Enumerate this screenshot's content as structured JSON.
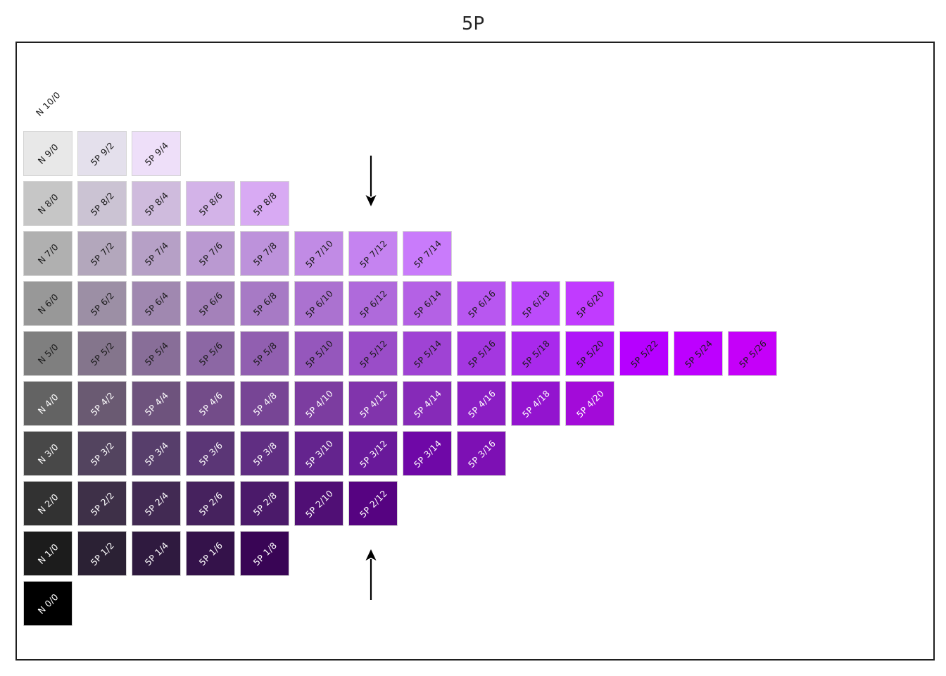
{
  "title": "5P",
  "chart_data": {
    "type": "heatmap",
    "title": "5P",
    "x_meaning": "Munsell chroma (0 = neutral N, then /2 steps up to /26)",
    "y_meaning": "Munsell value (0 dark bottom to 10 light top)",
    "legend": "none",
    "grid": "off",
    "rows": [
      {
        "value": 10,
        "cells": [
          {
            "label": "N 10/0",
            "chroma": 0,
            "color": "#ffffff",
            "text_color": "#1a1a1a",
            "borderless": true
          }
        ]
      },
      {
        "value": 9,
        "cells": [
          {
            "label": "N 9/0",
            "chroma": 0,
            "color": "#e8e8e8",
            "text_color": "#1a1a1a"
          },
          {
            "label": "5P 9/2",
            "chroma": 2,
            "color": "#e4e0ec",
            "text_color": "#1a1a1a"
          },
          {
            "label": "5P 9/4",
            "chroma": 4,
            "color": "#eedff9",
            "text_color": "#1a1a1a"
          }
        ]
      },
      {
        "value": 8,
        "cells": [
          {
            "label": "N 8/0",
            "chroma": 0,
            "color": "#c6c6c6",
            "text_color": "#1a1a1a"
          },
          {
            "label": "5P 8/2",
            "chroma": 2,
            "color": "#cbc3d3",
            "text_color": "#1a1a1a"
          },
          {
            "label": "5P 8/4",
            "chroma": 4,
            "color": "#cfbbdd",
            "text_color": "#1a1a1a"
          },
          {
            "label": "5P 8/6",
            "chroma": 6,
            "color": "#d3b3e8",
            "text_color": "#1a1a1a"
          },
          {
            "label": "5P 8/8",
            "chroma": 8,
            "color": "#d8aaf3",
            "text_color": "#1a1a1a"
          }
        ]
      },
      {
        "value": 7,
        "cells": [
          {
            "label": "N 7/0",
            "chroma": 0,
            "color": "#b0b0b0",
            "text_color": "#1a1a1a"
          },
          {
            "label": "5P 7/2",
            "chroma": 2,
            "color": "#b3a7bc",
            "text_color": "#1a1a1a"
          },
          {
            "label": "5P 7/4",
            "chroma": 4,
            "color": "#b6a0c6",
            "text_color": "#1a1a1a"
          },
          {
            "label": "5P 7/6",
            "chroma": 6,
            "color": "#ba99d1",
            "text_color": "#1a1a1a"
          },
          {
            "label": "5P 7/8",
            "chroma": 8,
            "color": "#bd92db",
            "text_color": "#1a1a1a"
          },
          {
            "label": "5P 7/10",
            "chroma": 10,
            "color": "#c18be5",
            "text_color": "#1a1a1a"
          },
          {
            "label": "5P 7/12",
            "chroma": 12,
            "color": "#c583f0",
            "text_color": "#1a1a1a"
          },
          {
            "label": "5P 7/14",
            "chroma": 14,
            "color": "#c97bfb",
            "text_color": "#1a1a1a"
          }
        ]
      },
      {
        "value": 6,
        "cells": [
          {
            "label": "N 6/0",
            "chroma": 0,
            "color": "#989898",
            "text_color": "#1a1a1a"
          },
          {
            "label": "5P 6/2",
            "chroma": 2,
            "color": "#9c8fa5",
            "text_color": "#1a1a1a"
          },
          {
            "label": "5P 6/4",
            "chroma": 4,
            "color": "#a088b0",
            "text_color": "#1a1a1a"
          },
          {
            "label": "5P 6/6",
            "chroma": 6,
            "color": "#a481ba",
            "text_color": "#1a1a1a"
          },
          {
            "label": "5P 6/8",
            "chroma": 8,
            "color": "#a77ac5",
            "text_color": "#1a1a1a"
          },
          {
            "label": "5P 6/10",
            "chroma": 10,
            "color": "#ab72d0",
            "text_color": "#1a1a1a"
          },
          {
            "label": "5P 6/12",
            "chroma": 12,
            "color": "#af6adb",
            "text_color": "#1a1a1a"
          },
          {
            "label": "5P 6/14",
            "chroma": 14,
            "color": "#b461e5",
            "text_color": "#1a1a1a"
          },
          {
            "label": "5P 6/16",
            "chroma": 16,
            "color": "#b857f0",
            "text_color": "#1a1a1a"
          },
          {
            "label": "5P 6/18",
            "chroma": 18,
            "color": "#bc4bfb",
            "text_color": "#1a1a1a"
          },
          {
            "label": "5P 6/20",
            "chroma": 20,
            "color": "#c13bff",
            "text_color": "#1a1a1a"
          }
        ]
      },
      {
        "value": 5,
        "cells": [
          {
            "label": "N 5/0",
            "chroma": 0,
            "color": "#7f7f7f",
            "text_color": "#1a1a1a"
          },
          {
            "label": "5P 5/2",
            "chroma": 2,
            "color": "#84758c",
            "text_color": "#1a1a1a"
          },
          {
            "label": "5P 5/4",
            "chroma": 4,
            "color": "#886e98",
            "text_color": "#1a1a1a"
          },
          {
            "label": "5P 5/6",
            "chroma": 6,
            "color": "#8c67a4",
            "text_color": "#1a1a1a"
          },
          {
            "label": "5P 5/8",
            "chroma": 8,
            "color": "#915fb0",
            "text_color": "#1a1a1a"
          },
          {
            "label": "5P 5/10",
            "chroma": 10,
            "color": "#9557bc",
            "text_color": "#1a1a1a"
          },
          {
            "label": "5P 5/12",
            "chroma": 12,
            "color": "#9a4dc8",
            "text_color": "#1a1a1a"
          },
          {
            "label": "5P 5/14",
            "chroma": 14,
            "color": "#9f43d4",
            "text_color": "#1a1a1a"
          },
          {
            "label": "5P 5/16",
            "chroma": 16,
            "color": "#a437e0",
            "text_color": "#1a1a1a"
          },
          {
            "label": "5P 5/18",
            "chroma": 18,
            "color": "#a929ec",
            "text_color": "#1a1a1a"
          },
          {
            "label": "5P 5/20",
            "chroma": 20,
            "color": "#af16f8",
            "text_color": "#1a1a1a"
          },
          {
            "label": "5P 5/22",
            "chroma": 22,
            "color": "#b600ff",
            "text_color": "#1a1a1a"
          },
          {
            "label": "5P 5/24",
            "chroma": 24,
            "color": "#bd00ff",
            "text_color": "#1a1a1a"
          },
          {
            "label": "5P 5/26",
            "chroma": 26,
            "color": "#c500f9",
            "text_color": "#1a1a1a"
          }
        ]
      },
      {
        "value": 4,
        "cells": [
          {
            "label": "N 4/0",
            "chroma": 0,
            "color": "#636363",
            "text_color": "#ffffff"
          },
          {
            "label": "5P 4/2",
            "chroma": 2,
            "color": "#6a5a72",
            "text_color": "#ffffff"
          },
          {
            "label": "5P 4/4",
            "chroma": 4,
            "color": "#6e537d",
            "text_color": "#ffffff"
          },
          {
            "label": "5P 4/6",
            "chroma": 6,
            "color": "#734c89",
            "text_color": "#ffffff"
          },
          {
            "label": "5P 4/8",
            "chroma": 8,
            "color": "#774595",
            "text_color": "#ffffff"
          },
          {
            "label": "5P 4/10",
            "chroma": 10,
            "color": "#7c3da0",
            "text_color": "#ffffff"
          },
          {
            "label": "5P 4/12",
            "chroma": 12,
            "color": "#8134ac",
            "text_color": "#ffffff"
          },
          {
            "label": "5P 4/14",
            "chroma": 14,
            "color": "#862ab8",
            "text_color": "#ffffff"
          },
          {
            "label": "5P 4/16",
            "chroma": 16,
            "color": "#8b1ec4",
            "text_color": "#ffffff"
          },
          {
            "label": "5P 4/18",
            "chroma": 18,
            "color": "#9314cf",
            "text_color": "#ffffff"
          },
          {
            "label": "5P 4/20",
            "chroma": 20,
            "color": "#a30bd9",
            "text_color": "#ffffff"
          }
        ]
      },
      {
        "value": 3,
        "cells": [
          {
            "label": "N 3/0",
            "chroma": 0,
            "color": "#484848",
            "text_color": "#ffffff"
          },
          {
            "label": "5P 3/2",
            "chroma": 2,
            "color": "#53445f",
            "text_color": "#ffffff"
          },
          {
            "label": "5P 3/4",
            "chroma": 4,
            "color": "#573e6b",
            "text_color": "#ffffff"
          },
          {
            "label": "5P 3/6",
            "chroma": 6,
            "color": "#5b3676",
            "text_color": "#ffffff"
          },
          {
            "label": "5P 3/8",
            "chroma": 8,
            "color": "#602e82",
            "text_color": "#ffffff"
          },
          {
            "label": "5P 3/10",
            "chroma": 10,
            "color": "#64248e",
            "text_color": "#ffffff"
          },
          {
            "label": "5P 3/12",
            "chroma": 12,
            "color": "#69199a",
            "text_color": "#ffffff"
          },
          {
            "label": "5P 3/14",
            "chroma": 14,
            "color": "#6f08a7",
            "text_color": "#ffffff"
          },
          {
            "label": "5P 3/16",
            "chroma": 16,
            "color": "#7d10b4",
            "text_color": "#ffffff"
          }
        ]
      },
      {
        "value": 2,
        "cells": [
          {
            "label": "N 2/0",
            "chroma": 0,
            "color": "#323232",
            "text_color": "#ffffff"
          },
          {
            "label": "5P 2/2",
            "chroma": 2,
            "color": "#3e3048",
            "text_color": "#ffffff"
          },
          {
            "label": "5P 2/4",
            "chroma": 4,
            "color": "#422a53",
            "text_color": "#ffffff"
          },
          {
            "label": "5P 2/6",
            "chroma": 6,
            "color": "#46225e",
            "text_color": "#ffffff"
          },
          {
            "label": "5P 2/8",
            "chroma": 8,
            "color": "#4b1a6a",
            "text_color": "#ffffff"
          },
          {
            "label": "5P 2/10",
            "chroma": 10,
            "color": "#500f75",
            "text_color": "#ffffff"
          },
          {
            "label": "5P 2/12",
            "chroma": 12,
            "color": "#560381",
            "text_color": "#ffffff"
          }
        ]
      },
      {
        "value": 1,
        "cells": [
          {
            "label": "N 1/0",
            "chroma": 0,
            "color": "#1c1c1c",
            "text_color": "#ffffff"
          },
          {
            "label": "5P 1/2",
            "chroma": 2,
            "color": "#2b2134",
            "text_color": "#ffffff"
          },
          {
            "label": "5P 1/4",
            "chroma": 4,
            "color": "#2f1a3f",
            "text_color": "#ffffff"
          },
          {
            "label": "5P 1/6",
            "chroma": 6,
            "color": "#34124a",
            "text_color": "#ffffff"
          },
          {
            "label": "5P 1/8",
            "chroma": 8,
            "color": "#390555",
            "text_color": "#ffffff"
          }
        ]
      },
      {
        "value": 0,
        "cells": [
          {
            "label": "N 0/0",
            "chroma": 0,
            "color": "#000000",
            "text_color": "#ffffff"
          }
        ]
      }
    ],
    "annotations": [
      {
        "name": "down-arrow",
        "direction": "down",
        "color": "#000000"
      },
      {
        "name": "up-arrow",
        "direction": "up",
        "color": "#000000"
      }
    ]
  }
}
